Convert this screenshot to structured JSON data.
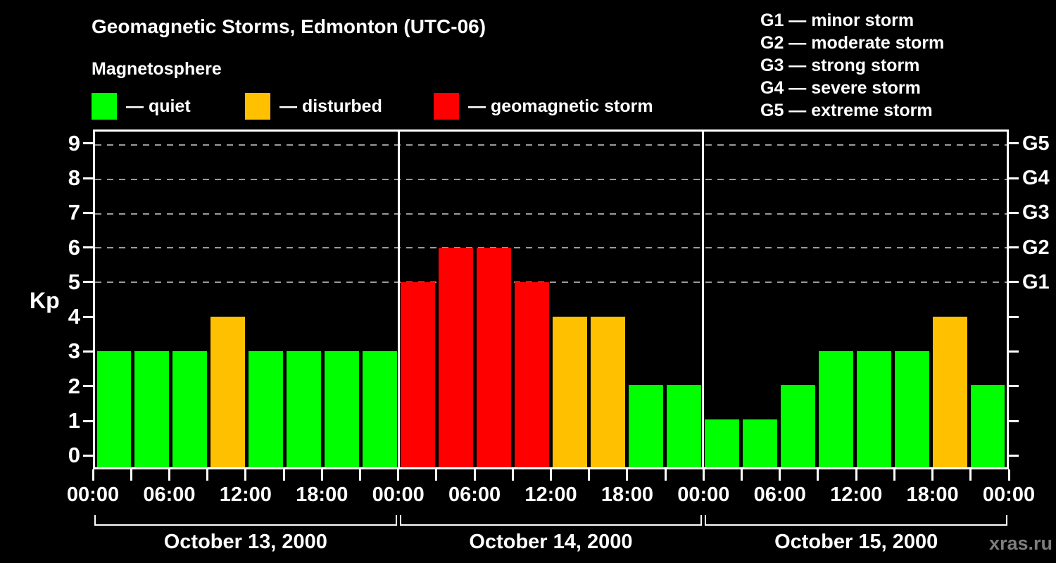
{
  "title": "Geomagnetic Storms, Edmonton (UTC-06)",
  "subtitle": "Magnetosphere",
  "legend": {
    "quiet": "— quiet",
    "disturbed": "— disturbed",
    "storm": "— geomagnetic storm"
  },
  "g_legend": [
    "G1 — minor storm",
    "G2 — moderate storm",
    "G3 — strong storm",
    "G4 — severe storm",
    "G5 — extreme storm"
  ],
  "watermark": "xras.ru",
  "colors": {
    "background": "#000000",
    "quiet": "#00ff00",
    "disturbed": "#ffc000",
    "storm": "#ff0000",
    "axis": "#ffffff",
    "grid": "#9a9a9a",
    "watermark": "#7d7d7d"
  },
  "chart_data": {
    "type": "bar",
    "title": "Geomagnetic Storms, Edmonton (UTC-06)",
    "ylabel": "Kp",
    "ylim": [
      -0.4,
      9.4
    ],
    "yticks": [
      0,
      1,
      2,
      3,
      4,
      5,
      6,
      7,
      8,
      9
    ],
    "grid_lines": [
      5,
      6,
      7,
      8,
      9
    ],
    "g_axis": [
      {
        "label": "G1",
        "value": 5
      },
      {
        "label": "G2",
        "value": 6
      },
      {
        "label": "G3",
        "value": 7
      },
      {
        "label": "G4",
        "value": 8
      },
      {
        "label": "G5",
        "value": 9
      }
    ],
    "interval_hours": 3,
    "x_tick_labels": [
      "00:00",
      "06:00",
      "12:00",
      "18:00",
      "00:00",
      "06:00",
      "12:00",
      "18:00",
      "00:00",
      "06:00",
      "12:00",
      "18:00",
      "00:00"
    ],
    "thresholds": {
      "disturbed": 4,
      "storm": 5
    },
    "days": [
      {
        "date": "October 13, 2000",
        "values": [
          3,
          3,
          3,
          4,
          3,
          3,
          3,
          3
        ]
      },
      {
        "date": "October 14, 2000",
        "values": [
          5,
          6,
          6,
          5,
          4,
          4,
          2,
          2
        ]
      },
      {
        "date": "October 15, 2000",
        "values": [
          1,
          1,
          2,
          3,
          3,
          3,
          4,
          2
        ]
      }
    ]
  }
}
